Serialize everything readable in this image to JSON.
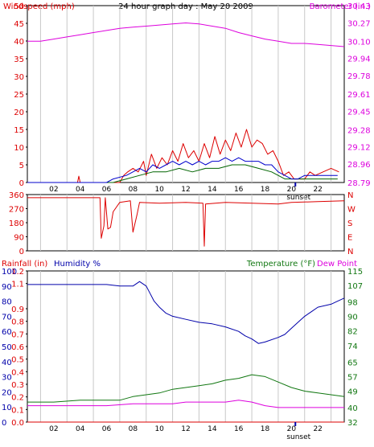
{
  "colors": {
    "background": "#ffffff",
    "frame": "#000000",
    "grid": "#c8c8c8",
    "wind_speed": "#dd0000",
    "wind_gust": "#006400",
    "wind_avg": "#0000cc",
    "barometer": "#dd00dd",
    "wind_direction": "#dd0000",
    "rainfall": "#dd0000",
    "humidity": "#0000aa",
    "temperature": "#117711",
    "dew_point": "#dd00dd",
    "sunset_tick": "#0000aa"
  },
  "chart_data": [
    {
      "type": "line",
      "title": "24 hour graph day : May 20 2009",
      "ylabel": "Windspeed (mph)",
      "y2label": "Barometer (in.)",
      "x_ticks": [
        "02",
        "04",
        "06",
        "08",
        "10",
        "12",
        "14",
        "16",
        "18",
        "20",
        "22"
      ],
      "x_tick_values": [
        2,
        4,
        6,
        8,
        10,
        12,
        14,
        16,
        18,
        20,
        22
      ],
      "sunset_label": "sunset",
      "sunset_hour": 20.3,
      "xlim": [
        0,
        24
      ],
      "ylim": [
        0,
        50
      ],
      "y_ticks": [
        "0",
        "5",
        "10",
        "15",
        "20",
        "25",
        "30",
        "35",
        "40",
        "45",
        "50"
      ],
      "y_tick_values": [
        0,
        5,
        10,
        15,
        20,
        25,
        30,
        35,
        40,
        45,
        50
      ],
      "y2lim": [
        28.79,
        30.43
      ],
      "y2_ticks": [
        "28.79",
        "28.96",
        "29.12",
        "29.28",
        "29.45",
        "29.61",
        "29.78",
        "29.94",
        "30.10",
        "30.27",
        "30.43"
      ],
      "y2_tick_values": [
        28.79,
        28.96,
        29.12,
        29.28,
        29.45,
        29.61,
        29.78,
        29.94,
        30.1,
        30.27,
        30.43
      ],
      "grid": true,
      "series": [
        {
          "axis": "right",
          "values": [
            [
              0,
              30.1
            ],
            [
              1,
              30.1
            ],
            [
              2,
              30.12
            ],
            [
              3,
              30.14
            ],
            [
              4,
              30.16
            ],
            [
              5,
              30.18
            ],
            [
              6,
              30.2
            ],
            [
              7,
              30.22
            ],
            [
              8,
              30.23
            ],
            [
              9,
              30.24
            ],
            [
              10,
              30.25
            ],
            [
              11,
              30.26
            ],
            [
              12,
              30.27
            ],
            [
              13,
              30.26
            ],
            [
              14,
              30.24
            ],
            [
              15,
              30.22
            ],
            [
              16,
              30.18
            ],
            [
              17,
              30.15
            ],
            [
              18,
              30.12
            ],
            [
              19,
              30.1
            ],
            [
              20,
              30.08
            ],
            [
              21,
              30.08
            ],
            [
              22,
              30.07
            ],
            [
              23,
              30.06
            ],
            [
              24,
              30.05
            ]
          ]
        },
        {
          "axis": "left",
          "values": [
            [
              0,
              0
            ],
            [
              3.8,
              0
            ],
            [
              3.9,
              1.8
            ],
            [
              4.0,
              0
            ],
            [
              7.0,
              0
            ],
            [
              7.3,
              2
            ],
            [
              7.6,
              3
            ],
            [
              8.0,
              4
            ],
            [
              8.4,
              3
            ],
            [
              8.8,
              6
            ],
            [
              9.0,
              2
            ],
            [
              9.4,
              8
            ],
            [
              9.8,
              4
            ],
            [
              10.2,
              7
            ],
            [
              10.6,
              5
            ],
            [
              11.0,
              9
            ],
            [
              11.4,
              6
            ],
            [
              11.8,
              11
            ],
            [
              12.2,
              7
            ],
            [
              12.6,
              9
            ],
            [
              13.0,
              6
            ],
            [
              13.4,
              11
            ],
            [
              13.8,
              7
            ],
            [
              14.2,
              13
            ],
            [
              14.6,
              8
            ],
            [
              15.0,
              12
            ],
            [
              15.4,
              9
            ],
            [
              15.8,
              14
            ],
            [
              16.2,
              10
            ],
            [
              16.6,
              15
            ],
            [
              17.0,
              10
            ],
            [
              17.4,
              12
            ],
            [
              17.8,
              11
            ],
            [
              18.2,
              8
            ],
            [
              18.6,
              9
            ],
            [
              19.0,
              6
            ],
            [
              19.4,
              2
            ],
            [
              19.8,
              3
            ],
            [
              20.2,
              1
            ],
            [
              21.0,
              1
            ],
            [
              21.4,
              3
            ],
            [
              21.8,
              2
            ],
            [
              22.4,
              3
            ],
            [
              23.0,
              4
            ],
            [
              23.6,
              3
            ]
          ]
        },
        {
          "axis": "left",
          "values": [
            [
              0,
              0
            ],
            [
              6.5,
              0
            ],
            [
              7.5,
              1
            ],
            [
              8.5,
              2
            ],
            [
              9.5,
              3
            ],
            [
              10.5,
              3
            ],
            [
              11.5,
              4
            ],
            [
              12.5,
              3
            ],
            [
              13.5,
              4
            ],
            [
              14.5,
              4
            ],
            [
              15.5,
              5
            ],
            [
              16.5,
              5
            ],
            [
              17.5,
              4
            ],
            [
              18.5,
              3
            ],
            [
              19.5,
              1
            ],
            [
              20.5,
              1
            ],
            [
              21.5,
              1
            ],
            [
              22.5,
              1
            ],
            [
              23.5,
              1
            ]
          ]
        },
        {
          "axis": "left",
          "values": [
            [
              0,
              0
            ],
            [
              6.0,
              0
            ],
            [
              6.5,
              1
            ],
            [
              7.5,
              2
            ],
            [
              8.0,
              3
            ],
            [
              8.5,
              4
            ],
            [
              9.0,
              3
            ],
            [
              9.5,
              5
            ],
            [
              10.0,
              4
            ],
            [
              10.5,
              5
            ],
            [
              11.0,
              6
            ],
            [
              11.5,
              5
            ],
            [
              12.0,
              6
            ],
            [
              12.5,
              5
            ],
            [
              13.0,
              6
            ],
            [
              13.5,
              5
            ],
            [
              14.0,
              6
            ],
            [
              14.5,
              6
            ],
            [
              15.0,
              7
            ],
            [
              15.5,
              6
            ],
            [
              16.0,
              7
            ],
            [
              16.5,
              6
            ],
            [
              17.0,
              6
            ],
            [
              17.5,
              6
            ],
            [
              18.0,
              5
            ],
            [
              18.5,
              5
            ],
            [
              19.0,
              3
            ],
            [
              19.5,
              2
            ],
            [
              20.0,
              1
            ],
            [
              20.5,
              1
            ],
            [
              21.0,
              2
            ],
            [
              21.5,
              2
            ],
            [
              22.0,
              2
            ],
            [
              22.5,
              2
            ],
            [
              23.0,
              2
            ],
            [
              23.5,
              2
            ]
          ]
        }
      ]
    },
    {
      "type": "line",
      "x_ticks": [],
      "xlim": [
        0,
        24
      ],
      "ylim": [
        0,
        360
      ],
      "y_ticks": [
        "0",
        "90",
        "180",
        "270",
        "360"
      ],
      "y_tick_values": [
        0,
        90,
        180,
        270,
        360
      ],
      "y2_ticks": [
        "N",
        "E",
        "S",
        "W",
        "N"
      ],
      "y2_tick_values": [
        0,
        90,
        180,
        270,
        360
      ],
      "grid": true,
      "series": [
        {
          "axis": "left",
          "values": [
            [
              0,
              340
            ],
            [
              5.5,
              340
            ],
            [
              5.6,
              80
            ],
            [
              5.8,
              160
            ],
            [
              5.9,
              340
            ],
            [
              6.1,
              140
            ],
            [
              6.3,
              150
            ],
            [
              6.5,
              250
            ],
            [
              7.0,
              310
            ],
            [
              7.8,
              320
            ],
            [
              8.0,
              120
            ],
            [
              8.3,
              230
            ],
            [
              8.5,
              310
            ],
            [
              10,
              305
            ],
            [
              12,
              310
            ],
            [
              13.3,
              305
            ],
            [
              13.4,
              30
            ],
            [
              13.5,
              300
            ],
            [
              15,
              310
            ],
            [
              17,
              305
            ],
            [
              19,
              300
            ],
            [
              20,
              310
            ],
            [
              22,
              315
            ],
            [
              24,
              320
            ]
          ]
        }
      ]
    },
    {
      "type": "line",
      "ylabel": "Rainfall (in)",
      "y3label": "Humidity %",
      "y2label": "Temperature (°F)",
      "y4label": "Dew Point",
      "x_ticks": [
        "02",
        "04",
        "06",
        "08",
        "10",
        "12",
        "14",
        "16",
        "18",
        "20",
        "22"
      ],
      "x_tick_values": [
        2,
        4,
        6,
        8,
        10,
        12,
        14,
        16,
        18,
        20,
        22
      ],
      "sunset_label": "sunset",
      "sunset_hour": 20.3,
      "xlim": [
        0,
        24
      ],
      "ylim": [
        0,
        1.2
      ],
      "y_ticks": [
        "0.0",
        "0.1",
        "0.2",
        "0.3",
        "0.4",
        "0.5",
        "0.6",
        "0.7",
        "0.8",
        "0.9",
        "1.1",
        "1.2"
      ],
      "y_tick_values": [
        0,
        0.1,
        0.2,
        0.3,
        0.4,
        0.5,
        0.6,
        0.7,
        0.8,
        0.9,
        1.1,
        1.2
      ],
      "y3_ticks": [
        "0",
        "10",
        "20",
        "30",
        "40",
        "50",
        "60",
        "70",
        "80",
        "90",
        "100"
      ],
      "y3_tick_values": [
        0,
        10,
        20,
        30,
        40,
        50,
        60,
        70,
        80,
        90,
        100
      ],
      "y2lim": [
        32,
        115
      ],
      "y2_ticks": [
        "32",
        "40",
        "49",
        "57",
        "65",
        "74",
        "82",
        "90",
        "98",
        "107",
        "115"
      ],
      "y2_tick_values": [
        32,
        40,
        49,
        57,
        65,
        74,
        82,
        90,
        98,
        107,
        115
      ],
      "grid": true,
      "series": [
        {
          "axis": "left",
          "values": [
            [
              0,
              0
            ],
            [
              24,
              0
            ]
          ]
        },
        {
          "axis": "humidity",
          "values": [
            [
              0,
              91
            ],
            [
              2,
              91
            ],
            [
              4,
              91
            ],
            [
              6,
              91
            ],
            [
              7,
              90
            ],
            [
              8,
              90
            ],
            [
              8.5,
              93
            ],
            [
              9.0,
              90
            ],
            [
              9.3,
              85
            ],
            [
              9.6,
              80
            ],
            [
              10.0,
              76
            ],
            [
              10.5,
              72
            ],
            [
              11,
              70
            ],
            [
              12,
              68
            ],
            [
              13,
              66
            ],
            [
              14,
              65
            ],
            [
              15,
              63
            ],
            [
              16,
              60
            ],
            [
              16.5,
              57
            ],
            [
              17,
              55
            ],
            [
              17.5,
              52
            ],
            [
              18,
              53
            ],
            [
              19,
              56
            ],
            [
              19.5,
              58
            ],
            [
              20,
              62
            ],
            [
              20.5,
              66
            ],
            [
              21,
              70
            ],
            [
              21.5,
              73
            ],
            [
              22,
              76
            ],
            [
              23,
              78
            ],
            [
              23.5,
              80
            ],
            [
              24,
              82
            ]
          ]
        },
        {
          "axis": "right",
          "values": [
            [
              0,
              43
            ],
            [
              2,
              43
            ],
            [
              4,
              44
            ],
            [
              6,
              44
            ],
            [
              7,
              44
            ],
            [
              8,
              46
            ],
            [
              9,
              47
            ],
            [
              10,
              48
            ],
            [
              11,
              50
            ],
            [
              12,
              51
            ],
            [
              13,
              52
            ],
            [
              14,
              53
            ],
            [
              15,
              55
            ],
            [
              16,
              56
            ],
            [
              17,
              58
            ],
            [
              18,
              57
            ],
            [
              19,
              54
            ],
            [
              20,
              51
            ],
            [
              21,
              49
            ],
            [
              22,
              48
            ],
            [
              23,
              47
            ],
            [
              24,
              46
            ]
          ]
        },
        {
          "axis": "right",
          "values": [
            [
              0,
              41
            ],
            [
              2,
              41
            ],
            [
              4,
              41
            ],
            [
              6,
              41
            ],
            [
              8,
              42
            ],
            [
              9,
              42
            ],
            [
              10,
              42
            ],
            [
              11,
              42
            ],
            [
              12,
              43
            ],
            [
              13,
              43
            ],
            [
              14,
              43
            ],
            [
              15,
              43
            ],
            [
              16,
              44
            ],
            [
              17,
              43
            ],
            [
              18,
              41
            ],
            [
              19,
              40
            ],
            [
              20,
              40
            ],
            [
              21,
              40
            ],
            [
              22,
              40
            ],
            [
              23,
              40
            ],
            [
              24,
              40
            ]
          ]
        }
      ]
    }
  ]
}
